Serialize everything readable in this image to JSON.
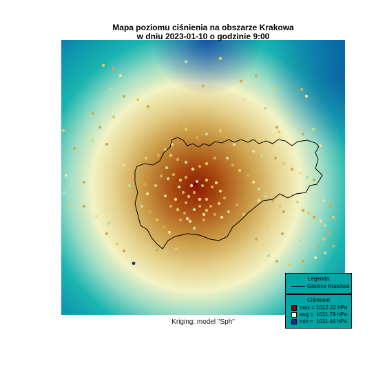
{
  "title_line1": "Mapa poziomu ciśnienia na obszarze Krakowa",
  "title_line2": "w dniu 2023-01-10 o godzinie 9:00",
  "subtitle": "Kriging: model \"Sph\"",
  "legend": {
    "heading": "Legenda",
    "boundary_label": "Granice Krakowa"
  },
  "pressure_legend": {
    "heading": "Ciśnienie",
    "items": [
      {
        "key": "max =",
        "value": "1012.22 hPa",
        "color": "#8b0000"
      },
      {
        "key": "avg =",
        "value": "1011.79 hPa",
        "color": "#ffffe0"
      },
      {
        "key": "min =",
        "value": "1011.44 hPa",
        "color": "#1e2d8c"
      }
    ]
  },
  "colors": {
    "low": "#0a4fa0",
    "mid_low": "#0fb0b0",
    "mid": "#f3f3c4",
    "mid_high": "#c99a45",
    "high": "#8c1a05"
  }
}
